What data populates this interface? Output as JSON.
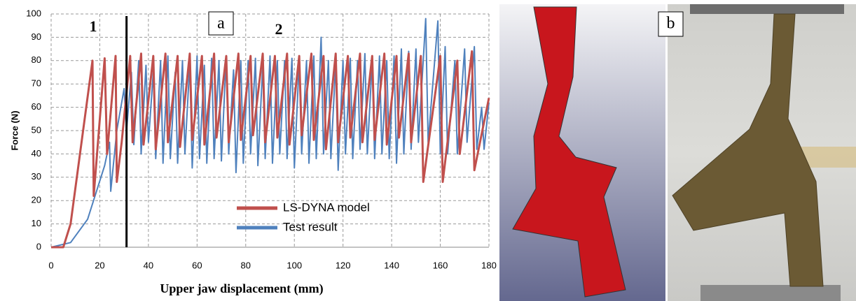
{
  "chart_data": {
    "type": "line",
    "ylabel": "Force (N)",
    "xlabel": "Upper jaw displacement (mm)",
    "annotations": [
      "1",
      "2"
    ],
    "panel_labels": [
      "a",
      "b"
    ],
    "vline": 31,
    "xlim": [
      0,
      180
    ],
    "xticks": [
      0,
      20,
      40,
      60,
      80,
      100,
      120,
      140,
      160,
      180
    ],
    "ylim": [
      0,
      100
    ],
    "yticks": [
      0,
      10,
      20,
      30,
      40,
      50,
      60,
      70,
      80,
      90,
      100
    ],
    "grid": true,
    "series": [
      {
        "name": "LS-DYNA model",
        "color": "#c0504d",
        "x": [
          0,
          5,
          8,
          17,
          17.5,
          22,
          23,
          26.5,
          27,
          29,
          32.5,
          33.5,
          37,
          38,
          42,
          43,
          47,
          48,
          52,
          53,
          57,
          58,
          62,
          63,
          67,
          68,
          72,
          73,
          77,
          78,
          82,
          83,
          87,
          88,
          92,
          93,
          97,
          98,
          102,
          103,
          107,
          108,
          112,
          113,
          117,
          118,
          122,
          123,
          127,
          128,
          132,
          133,
          137,
          138,
          142,
          143,
          147,
          148,
          152,
          153,
          160,
          161,
          167,
          168,
          173,
          174,
          180
        ],
        "values": [
          0,
          0,
          10,
          80,
          22,
          81,
          40,
          82,
          28,
          45,
          82,
          45,
          83,
          44,
          82,
          42,
          83,
          45,
          82,
          43,
          83,
          46,
          82,
          44,
          83,
          47,
          82,
          45,
          83,
          46,
          82,
          48,
          83,
          45,
          82,
          47,
          83,
          44,
          82,
          48,
          83,
          46,
          82,
          42,
          83,
          45,
          82,
          47,
          83,
          45,
          82,
          46,
          83,
          44,
          82,
          47,
          83,
          45,
          82,
          28,
          82,
          28,
          80,
          40,
          84,
          33,
          64
        ]
      },
      {
        "name": "Test result",
        "color": "#4f81bd",
        "x": [
          0,
          8,
          15,
          22,
          24,
          24.5,
          27,
          30,
          31,
          33,
          34,
          36,
          37,
          39,
          40,
          42,
          43,
          45,
          46,
          48,
          49,
          51,
          52,
          54,
          55,
          57,
          58,
          60,
          61,
          63,
          64,
          66,
          67,
          69,
          70,
          72,
          73,
          75,
          76,
          78,
          79,
          81,
          82,
          84,
          85,
          87,
          88,
          90,
          91,
          93,
          94,
          96,
          97,
          99,
          100,
          102,
          103,
          105,
          106,
          108,
          109,
          111,
          112,
          114,
          115,
          117,
          118,
          120,
          121,
          123,
          124,
          126,
          127,
          129,
          130,
          132,
          133,
          135,
          136,
          138,
          139,
          141,
          142,
          144,
          145,
          147,
          148,
          150,
          151,
          154,
          155,
          159,
          160,
          162,
          163,
          166,
          167,
          170,
          171,
          174,
          175,
          177,
          178,
          180
        ],
        "values": [
          0,
          2,
          12,
          35,
          45,
          24,
          50,
          68,
          50,
          75,
          44,
          80,
          40,
          78,
          45,
          75,
          38,
          80,
          36,
          82,
          38,
          75,
          36,
          80,
          40,
          79,
          34,
          82,
          38,
          78,
          36,
          81,
          38,
          80,
          37,
          82,
          40,
          76,
          32,
          80,
          36,
          80,
          40,
          81,
          35,
          78,
          38,
          82,
          36,
          80,
          40,
          80,
          38,
          81,
          34,
          80,
          40,
          80,
          36,
          82,
          38,
          90,
          40,
          80,
          38,
          79,
          33,
          80,
          40,
          81,
          38,
          80,
          42,
          83,
          40,
          80,
          38,
          82,
          40,
          80,
          38,
          82,
          36,
          85,
          40,
          84,
          42,
          85,
          45,
          98,
          45,
          97,
          40,
          86,
          40,
          80,
          40,
          85,
          45,
          86,
          42,
          60,
          42,
          62
        ]
      }
    ]
  }
}
